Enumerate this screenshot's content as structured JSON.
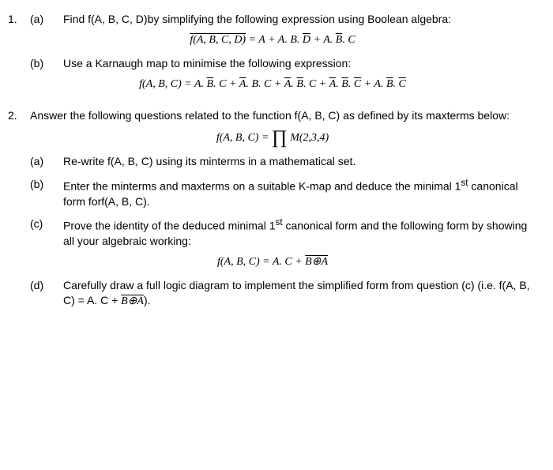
{
  "q1": {
    "num": "1.",
    "a": {
      "label": "(a)",
      "text": "Find f(A, B, C, D)by simplifying the following expression using Boolean algebra:",
      "formula_lhs": "f(A, B, C, D)",
      "formula_rhs1": " = A + A. B. ",
      "formula_d": "D",
      "formula_rhs2": " + A. ",
      "formula_b": "B",
      "formula_rhs3": ". C"
    },
    "b": {
      "label": "(b)",
      "text": "Use a Karnaugh map to minimise the following expression:",
      "f_lhs": "f(A, B, C) = A. ",
      "t1_b": "B",
      "t1_c": ". C + ",
      "t2_a": "A",
      "t2_bc": ". B. C + ",
      "t3_a": "A",
      "t3_dot": ". ",
      "t3_b": "B",
      "t3_c": ". C + ",
      "t4_a": "A",
      "t4_dot": ". ",
      "t4_b": "B",
      "t4_dot2": ". ",
      "t4_c": "C",
      "t4_plus": " + A. ",
      "t5_b": "B",
      "t5_dot": ". ",
      "t5_c": "C"
    }
  },
  "q2": {
    "num": "2.",
    "intro": "Answer the following questions related to the function f(A, B, C) as defined by its maxterms below:",
    "formula_lhs": "f(A, B, C) = ",
    "formula_m": " M(2,3,4)",
    "a": {
      "label": "(a)",
      "text": "Re-write f(A, B, C) using its minterms in a mathematical set."
    },
    "b": {
      "label": "(b)",
      "text": "Enter the minterms and maxterms on a suitable K-map and deduce the minimal 1",
      "sup": "st",
      "text2": " canonical form forf(A, B, C)."
    },
    "c": {
      "label": "(c)",
      "text": "Prove the identity of the deduced minimal 1",
      "sup": "st",
      "text2": " canonical form and the following form by showing all your algebraic working:",
      "f_lhs": "f(A, B, C) =  A. C + ",
      "f_ovl": "B⊕A"
    },
    "d": {
      "label": "(d)",
      "text": "Carefully draw a full logic diagram to implement the simplified form from question (c) (i.e. f(A, B, C) =  A. C + ",
      "f_ovl": "B⊕A",
      "text2": ")."
    }
  }
}
